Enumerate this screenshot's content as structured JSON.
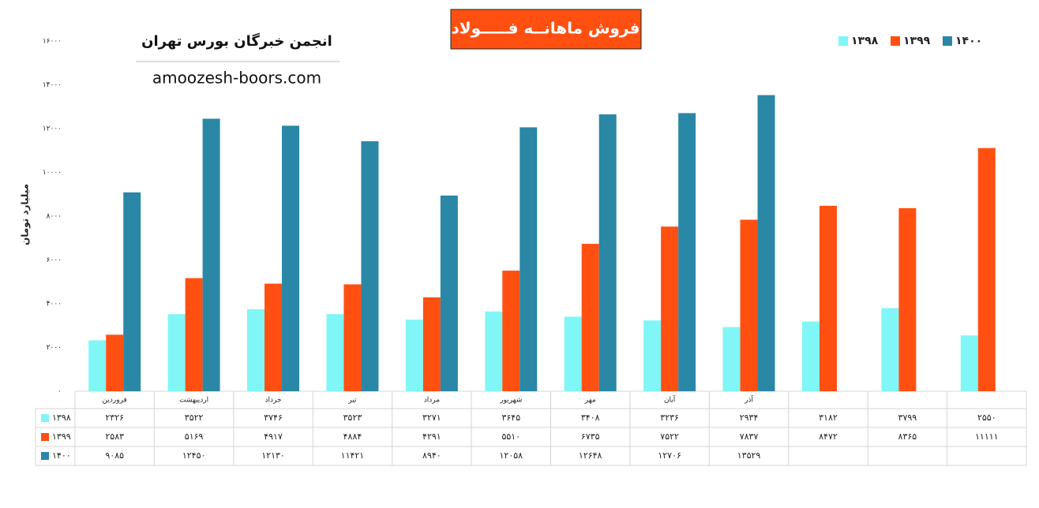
{
  "chart_data": {
    "type": "bar",
    "title": "فروش ماهانــه فـــــولاد",
    "brand": "انجمن خبرگان بورس تهران",
    "site": "amoozesh-boors.com",
    "y_label": "میلیارد تومان",
    "categories": [
      "فروردین",
      "اردیبهشت",
      "خرداد",
      "تیر",
      "مرداد",
      "شهریور",
      "مهر",
      "آبان",
      "آذر",
      null,
      null,
      null
    ],
    "series": [
      {
        "name": "۱۳۹۸",
        "color": "#80f6f6",
        "values": [
          2326,
          3522,
          3746,
          3523,
          3271,
          3645,
          3408,
          3236,
          2934,
          3182,
          3799,
          2550
        ],
        "value_labels": [
          "۲۳۲۶",
          "۳۵۲۲",
          "۳۷۴۶",
          "۳۵۲۳",
          "۳۲۷۱",
          "۳۶۴۵",
          "۳۴۰۸",
          "۳۲۳۶",
          "۲۹۳۴",
          "۳۱۸۲",
          "۳۷۹۹",
          "۲۵۵۰"
        ]
      },
      {
        "name": "۱۳۹۹",
        "color": "#ff5012",
        "values": [
          2583,
          5169,
          4917,
          4884,
          4291,
          5510,
          6735,
          7522,
          7837,
          8472,
          8365,
          11111
        ],
        "value_labels": [
          "۲۵۸۳",
          "۵۱۶۹",
          "۴۹۱۷",
          "۴۸۸۴",
          "۴۲۹۱",
          "۵۵۱۰",
          "۶۷۳۵",
          "۷۵۲۲",
          "۷۸۳۷",
          "۸۴۷۲",
          "۸۳۶۵",
          "۱۱۱۱۱"
        ]
      },
      {
        "name": "۱۴۰۰",
        "color": "#2a87a6",
        "values": [
          9085,
          12450,
          12130,
          11421,
          8940,
          12058,
          12648,
          12706,
          13529,
          null,
          null,
          null
        ],
        "value_labels": [
          "۹۰۸۵",
          "۱۲۴۵۰",
          "۱۲۱۳۰",
          "۱۱۴۲۱",
          "۸۹۴۰",
          "۱۲۰۵۸",
          "۱۲۶۴۸",
          "۱۲۷۰۶",
          "۱۳۵۲۹",
          null,
          null,
          null
        ]
      }
    ],
    "ylim": [
      0,
      16000
    ],
    "yticks": [
      {
        "value": 0,
        "label": "۰"
      },
      {
        "value": 2000,
        "label": "۲۰۰۰"
      },
      {
        "value": 4000,
        "label": "۴۰۰۰"
      },
      {
        "value": 6000,
        "label": "۶۰۰۰"
      },
      {
        "value": 8000,
        "label": "۸۰۰۰"
      },
      {
        "value": 10000,
        "label": "۱۰۰۰۰"
      },
      {
        "value": 12000,
        "label": "۱۲۰۰۰"
      },
      {
        "value": 14000,
        "label": "۱۴۰۰۰"
      },
      {
        "value": 16000,
        "label": "۱۶۰۰۰"
      }
    ],
    "legend": "top-right"
  }
}
